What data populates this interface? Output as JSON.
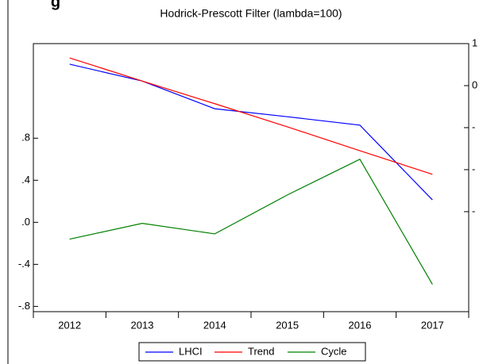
{
  "chart_data": {
    "type": "line",
    "heading": "g",
    "title": "Hodrick-Prescott Filter (lambda=100)",
    "categories": [
      "2012",
      "2013",
      "2014",
      "2015",
      "2016",
      "2017"
    ],
    "series": [
      {
        "name": "LHCI",
        "color": "#0000ff",
        "axis": "y2",
        "values": [
          0.51,
          0.11,
          -0.55,
          -0.74,
          -0.94,
          -2.72
        ]
      },
      {
        "name": "Trend",
        "color": "#ff0000",
        "axis": "y2",
        "values": [
          0.66,
          0.11,
          -0.43,
          -0.98,
          -1.55,
          -2.11
        ]
      },
      {
        "name": "Cycle",
        "color": "#008000",
        "values": [
          -0.16,
          -0.01,
          -0.11,
          0.26,
          0.6,
          -0.59
        ]
      }
    ],
    "ylim": [
      -0.85,
      1.7
    ],
    "yticks": [
      {
        "value": 0.8,
        "label": ".8"
      },
      {
        "value": 0.4,
        "label": ".4"
      },
      {
        "value": 0.0,
        "label": ".0"
      },
      {
        "value": -0.4,
        "label": "-.4"
      },
      {
        "value": -0.8,
        "label": "-.8"
      }
    ],
    "y2lim": [
      -5.38,
      1
    ],
    "y2ticks": [
      1,
      0,
      {
        "value": -1,
        "label": "-"
      },
      {
        "value": -2,
        "label": "-"
      },
      {
        "value": -3,
        "label": "-"
      }
    ],
    "legend": "bottom"
  }
}
